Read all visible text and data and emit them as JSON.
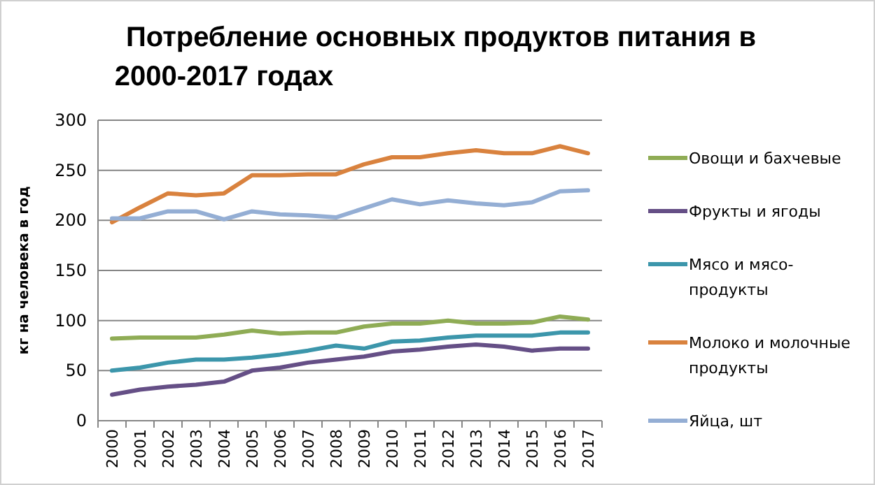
{
  "chart_data": {
    "type": "line",
    "title": "Потребление основных продуктов питания в 2000-2017 годах",
    "ylabel": "кг на человека в год",
    "categories": [
      "2000",
      "2001",
      "2002",
      "2003",
      "2004",
      "2005",
      "2006",
      "2007",
      "2008",
      "2009",
      "2010",
      "2011",
      "2012",
      "2013",
      "2014",
      "2015",
      "2016",
      "2017"
    ],
    "series": [
      {
        "name": "Овощи и бахчевые",
        "color": "#8fac55",
        "values": [
          82,
          83,
          83,
          83,
          86,
          90,
          87,
          88,
          88,
          94,
          97,
          97,
          100,
          97,
          97,
          98,
          104,
          101
        ]
      },
      {
        "name": "Фрукты и ягоды",
        "color": "#654f86",
        "values": [
          26,
          31,
          34,
          36,
          39,
          50,
          53,
          58,
          61,
          64,
          69,
          71,
          74,
          76,
          74,
          70,
          72,
          72
        ]
      },
      {
        "name": "Мясо и мясо-продукты",
        "color": "#3c96ab",
        "values": [
          50,
          53,
          58,
          61,
          61,
          63,
          66,
          70,
          75,
          72,
          79,
          80,
          83,
          85,
          85,
          85,
          88,
          88
        ]
      },
      {
        "name": "Молоко и молочные продукты",
        "color": "#d9823e",
        "values": [
          198,
          213,
          227,
          225,
          227,
          245,
          245,
          246,
          246,
          256,
          263,
          263,
          267,
          270,
          267,
          267,
          274,
          267
        ]
      },
      {
        "name": "Яйца, шт",
        "color": "#94aed4",
        "values": [
          202,
          202,
          209,
          209,
          201,
          209,
          206,
          205,
          203,
          212,
          221,
          216,
          220,
          217,
          215,
          218,
          229,
          230
        ]
      }
    ],
    "ylim": [
      0,
      300
    ],
    "yticks": [
      0,
      50,
      100,
      150,
      200,
      250,
      300
    ],
    "grid": "y",
    "legend": "right",
    "marker": "none",
    "line_style": "solid"
  }
}
